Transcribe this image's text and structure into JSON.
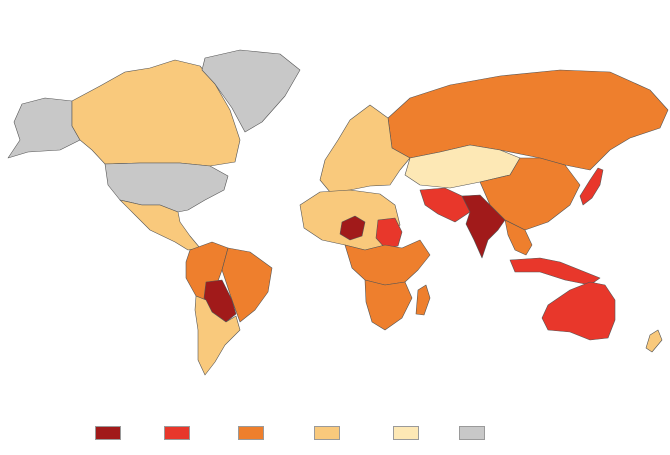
{
  "map": {
    "colors": {
      "level1": "#a11a1a",
      "level2": "#e8372b",
      "level3": "#ee7f2d",
      "level4": "#f9c97c",
      "level5": "#fde8b5",
      "nodata": "#c8c8c8",
      "border": "#555555"
    },
    "regions": [
      {
        "name": "alaska-region",
        "level": "nodata"
      },
      {
        "name": "canada-region",
        "level": "level4"
      },
      {
        "name": "greenland-region",
        "level": "nodata"
      },
      {
        "name": "usa-region",
        "level": "nodata"
      },
      {
        "name": "mexico-central-america-region",
        "level": "level4"
      },
      {
        "name": "colombia-peru-region",
        "level": "level3"
      },
      {
        "name": "brazil-region",
        "level": "level3"
      },
      {
        "name": "bolivia-paraguay-region",
        "level": "level1"
      },
      {
        "name": "argentina-chile-region",
        "level": "level4"
      },
      {
        "name": "russia-region",
        "level": "level3"
      },
      {
        "name": "europe-region",
        "level": "level4"
      },
      {
        "name": "china-region",
        "level": "level3"
      },
      {
        "name": "mongolia-kazakhstan-region",
        "level": "level5"
      },
      {
        "name": "india-region",
        "level": "level1"
      },
      {
        "name": "iran-pakistan-region",
        "level": "level2"
      },
      {
        "name": "southeast-asia-region",
        "level": "level3"
      },
      {
        "name": "indonesia-region",
        "level": "level2"
      },
      {
        "name": "japan-region",
        "level": "level2"
      },
      {
        "name": "australia-region",
        "level": "level2"
      },
      {
        "name": "new-zealand-region",
        "level": "level4"
      },
      {
        "name": "west-africa-region",
        "level": "level4"
      },
      {
        "name": "niger-region",
        "level": "level1"
      },
      {
        "name": "sudan-region",
        "level": "level2"
      },
      {
        "name": "central-africa-region",
        "level": "level3"
      },
      {
        "name": "southern-africa-region",
        "level": "level3"
      },
      {
        "name": "madagascar-region",
        "level": "level3"
      }
    ]
  },
  "legend": {
    "items": [
      {
        "level": "level1",
        "label": ""
      },
      {
        "level": "level2",
        "label": ""
      },
      {
        "level": "level3",
        "label": ""
      },
      {
        "level": "level4",
        "label": ""
      },
      {
        "level": "level5",
        "label": ""
      },
      {
        "level": "nodata",
        "label": ""
      }
    ]
  }
}
